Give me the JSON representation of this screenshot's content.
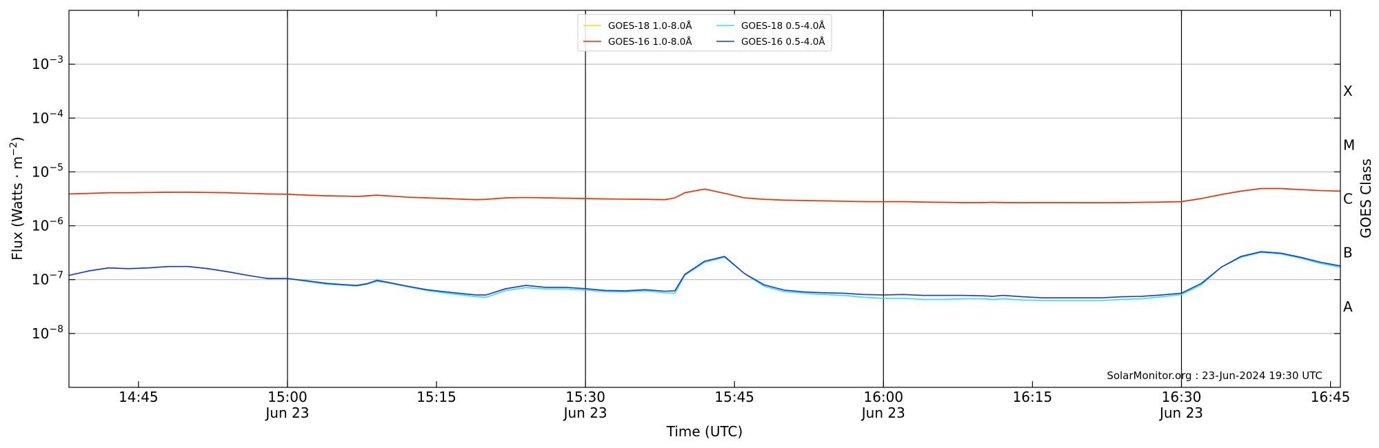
{
  "chart_data": {
    "type": "line",
    "xlabel": "Time (UTC)",
    "ylabel": "Flux (Watts · m",
    "ylabel_sup": "−2",
    "ylabel_close": ")",
    "right_label": "GOES Class",
    "yscale": "log",
    "xlim": [
      "14:38",
      "16:46"
    ],
    "ylim": [
      1e-09,
      0.01
    ],
    "grid": true,
    "legend_position": "top-center",
    "annotation": "SolarMonitor.org : 23-Jun-2024 19:30 UTC",
    "y_ticks": [
      {
        "value": 1e-08,
        "mant": "10",
        "exp": "−8"
      },
      {
        "value": 1e-07,
        "mant": "10",
        "exp": "−7"
      },
      {
        "value": 1e-06,
        "mant": "10",
        "exp": "−6"
      },
      {
        "value": 1e-05,
        "mant": "10",
        "exp": "−5"
      },
      {
        "value": 0.0001,
        "mant": "10",
        "exp": "−4"
      },
      {
        "value": 0.001,
        "mant": "10",
        "exp": "−3"
      }
    ],
    "x_ticks": [
      {
        "time": "14:45",
        "label": "14:45",
        "date": ""
      },
      {
        "time": "15:00",
        "label": "15:00",
        "date": "Jun 23"
      },
      {
        "time": "15:15",
        "label": "15:15",
        "date": ""
      },
      {
        "time": "15:30",
        "label": "15:30",
        "date": "Jun 23"
      },
      {
        "time": "15:45",
        "label": "15:45",
        "date": ""
      },
      {
        "time": "16:00",
        "label": "16:00",
        "date": "Jun 23"
      },
      {
        "time": "16:15",
        "label": "16:15",
        "date": ""
      },
      {
        "time": "16:30",
        "label": "16:30",
        "date": "Jun 23"
      },
      {
        "time": "16:45",
        "label": "16:45",
        "date": ""
      }
    ],
    "vlines": [
      "15:00",
      "15:30",
      "16:00",
      "16:30"
    ],
    "classes": [
      {
        "label": "A",
        "value": 3.16e-08
      },
      {
        "label": "B",
        "value": 3.16e-07
      },
      {
        "label": "C",
        "value": 3.16e-06
      },
      {
        "label": "M",
        "value": 3.16e-05
      },
      {
        "label": "X",
        "value": 0.000316
      }
    ],
    "x": [
      "14:38",
      "14:40",
      "14:42",
      "14:44",
      "14:46",
      "14:48",
      "14:50",
      "14:52",
      "14:54",
      "14:56",
      "14:58",
      "15:00",
      "15:02",
      "15:04",
      "15:06",
      "15:07",
      "15:08",
      "15:09",
      "15:10",
      "15:12",
      "15:14",
      "15:16",
      "15:18",
      "15:19",
      "15:20",
      "15:22",
      "15:24",
      "15:26",
      "15:28",
      "15:30",
      "15:32",
      "15:34",
      "15:36",
      "15:38",
      "15:39",
      "15:40",
      "15:42",
      "15:44",
      "15:46",
      "15:48",
      "15:50",
      "15:52",
      "15:54",
      "15:56",
      "15:58",
      "16:00",
      "16:02",
      "16:04",
      "16:06",
      "16:08",
      "16:10",
      "16:11",
      "16:12",
      "16:14",
      "16:16",
      "16:18",
      "16:20",
      "16:22",
      "16:24",
      "16:26",
      "16:28",
      "16:30",
      "16:32",
      "16:34",
      "16:36",
      "16:38",
      "16:40",
      "16:42",
      "16:44",
      "16:46"
    ],
    "series": [
      {
        "name": "GOES-18 1.0-8.0Å",
        "color": "#ffd700",
        "values": [
          3.9e-06,
          4e-06,
          4.1e-06,
          4.1e-06,
          4.15e-06,
          4.2e-06,
          4.2e-06,
          4.15e-06,
          4.1e-06,
          4e-06,
          3.9e-06,
          3.85e-06,
          3.7e-06,
          3.6e-06,
          3.55e-06,
          3.5e-06,
          3.6e-06,
          3.7e-06,
          3.6e-06,
          3.4e-06,
          3.3e-06,
          3.2e-06,
          3.1e-06,
          3.05e-06,
          3.1e-06,
          3.3e-06,
          3.35e-06,
          3.3e-06,
          3.25e-06,
          3.2e-06,
          3.15e-06,
          3.12e-06,
          3.1e-06,
          3.05e-06,
          3.3e-06,
          4.1e-06,
          4.8e-06,
          4e-06,
          3.3e-06,
          3.1e-06,
          3e-06,
          2.95e-06,
          2.9e-06,
          2.85e-06,
          2.82e-06,
          2.8e-06,
          2.8e-06,
          2.75e-06,
          2.72e-06,
          2.7e-06,
          2.7e-06,
          2.72e-06,
          2.7e-06,
          2.68e-06,
          2.7e-06,
          2.7e-06,
          2.68e-06,
          2.68e-06,
          2.7e-06,
          2.72e-06,
          2.75e-06,
          2.8e-06,
          3.2e-06,
          3.8e-06,
          4.4e-06,
          4.9e-06,
          4.9e-06,
          4.7e-06,
          4.5e-06,
          4.4e-06
        ]
      },
      {
        "name": "GOES-16 1.0-8.0Å",
        "color": "#ff2200",
        "values": [
          3.9e-06,
          4e-06,
          4.1e-06,
          4.1e-06,
          4.15e-06,
          4.2e-06,
          4.2e-06,
          4.15e-06,
          4.1e-06,
          4e-06,
          3.9e-06,
          3.85e-06,
          3.7e-06,
          3.6e-06,
          3.55e-06,
          3.5e-06,
          3.6e-06,
          3.7e-06,
          3.6e-06,
          3.4e-06,
          3.3e-06,
          3.2e-06,
          3.1e-06,
          3.05e-06,
          3.1e-06,
          3.3e-06,
          3.35e-06,
          3.3e-06,
          3.25e-06,
          3.2e-06,
          3.15e-06,
          3.12e-06,
          3.1e-06,
          3.05e-06,
          3.3e-06,
          4.1e-06,
          4.8e-06,
          4e-06,
          3.3e-06,
          3.1e-06,
          3e-06,
          2.95e-06,
          2.9e-06,
          2.85e-06,
          2.82e-06,
          2.8e-06,
          2.8e-06,
          2.75e-06,
          2.72e-06,
          2.7e-06,
          2.7e-06,
          2.72e-06,
          2.7e-06,
          2.68e-06,
          2.7e-06,
          2.7e-06,
          2.68e-06,
          2.68e-06,
          2.7e-06,
          2.72e-06,
          2.75e-06,
          2.8e-06,
          3.2e-06,
          3.8e-06,
          4.4e-06,
          4.9e-06,
          4.9e-06,
          4.7e-06,
          4.5e-06,
          4.4e-06
        ]
      },
      {
        "name": "GOES-18 0.5-4.0Å",
        "color": "#22e6f5",
        "values": [
          1.2e-07,
          1.45e-07,
          1.65e-07,
          1.6e-07,
          1.65e-07,
          1.75e-07,
          1.75e-07,
          1.6e-07,
          1.4e-07,
          1.2e-07,
          1.05e-07,
          1.05e-07,
          9.2e-08,
          8.2e-08,
          7.8e-08,
          7.6e-08,
          8.2e-08,
          9.3e-08,
          8.8e-08,
          7.4e-08,
          6.3e-08,
          5.6e-08,
          5.1e-08,
          4.8e-08,
          4.7e-08,
          6.3e-08,
          7.1e-08,
          6.7e-08,
          6.7e-08,
          6.4e-08,
          6e-08,
          5.9e-08,
          6.2e-08,
          5.7e-08,
          5.6e-08,
          1.2e-07,
          2.1e-07,
          2.6e-07,
          1.3e-07,
          7.5e-08,
          6e-08,
          5.6e-08,
          5.3e-08,
          5.1e-08,
          4.7e-08,
          4.5e-08,
          4.5e-08,
          4.3e-08,
          4.3e-08,
          4.4e-08,
          4.4e-08,
          4.3e-08,
          4.4e-08,
          4.2e-08,
          4.1e-08,
          4.1e-08,
          4.1e-08,
          4.1e-08,
          4.3e-08,
          4.4e-08,
          4.8e-08,
          5.3e-08,
          8e-08,
          1.7e-07,
          2.6e-07,
          3.2e-07,
          3e-07,
          2.5e-07,
          2e-07,
          1.7e-07
        ]
      },
      {
        "name": "GOES-16 0.5-4.0Å",
        "color": "#1a32e6",
        "values": [
          1.2e-07,
          1.45e-07,
          1.65e-07,
          1.6e-07,
          1.65e-07,
          1.75e-07,
          1.75e-07,
          1.6e-07,
          1.4e-07,
          1.2e-07,
          1.05e-07,
          1.05e-07,
          9.5e-08,
          8.5e-08,
          8e-08,
          7.8e-08,
          8.4e-08,
          9.7e-08,
          9e-08,
          7.6e-08,
          6.5e-08,
          5.9e-08,
          5.4e-08,
          5.2e-08,
          5.2e-08,
          6.8e-08,
          7.8e-08,
          7.2e-08,
          7.2e-08,
          6.8e-08,
          6.3e-08,
          6.2e-08,
          6.5e-08,
          6.1e-08,
          6.2e-08,
          1.25e-07,
          2.2e-07,
          2.7e-07,
          1.3e-07,
          8e-08,
          6.4e-08,
          5.9e-08,
          5.7e-08,
          5.6e-08,
          5.3e-08,
          5.2e-08,
          5.3e-08,
          5.1e-08,
          5.1e-08,
          5.1e-08,
          5e-08,
          4.9e-08,
          5.1e-08,
          4.8e-08,
          4.6e-08,
          4.6e-08,
          4.6e-08,
          4.6e-08,
          4.8e-08,
          4.9e-08,
          5.2e-08,
          5.6e-08,
          8.5e-08,
          1.7e-07,
          2.7e-07,
          3.3e-07,
          3.1e-07,
          2.6e-07,
          2.1e-07,
          1.8e-07
        ]
      }
    ]
  }
}
